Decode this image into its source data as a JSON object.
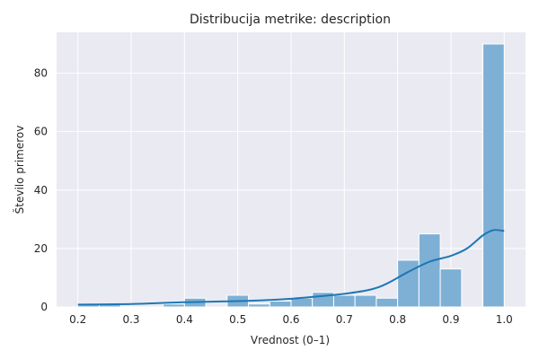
{
  "chart_data": {
    "type": "bar",
    "title": "Distribucija metrike: description",
    "xlabel": "Vrednost (0–1)",
    "ylabel": "Število primerov",
    "xlim": [
      0.16,
      1.04
    ],
    "ylim": [
      0,
      94
    ],
    "xticks": [
      "0.2",
      "0.3",
      "0.4",
      "0.5",
      "0.6",
      "0.7",
      "0.8",
      "0.9",
      "1.0"
    ],
    "yticks": [
      "0",
      "20",
      "40",
      "60",
      "80"
    ],
    "grid": true,
    "bars": [
      {
        "x0": 0.2,
        "x1": 0.24,
        "value": 1
      },
      {
        "x0": 0.24,
        "x1": 0.28,
        "value": 1
      },
      {
        "x0": 0.28,
        "x1": 0.32,
        "value": 0
      },
      {
        "x0": 0.32,
        "x1": 0.36,
        "value": 0
      },
      {
        "x0": 0.36,
        "x1": 0.4,
        "value": 1
      },
      {
        "x0": 0.4,
        "x1": 0.44,
        "value": 3
      },
      {
        "x0": 0.44,
        "x1": 0.48,
        "value": 0
      },
      {
        "x0": 0.48,
        "x1": 0.52,
        "value": 4
      },
      {
        "x0": 0.52,
        "x1": 0.56,
        "value": 1
      },
      {
        "x0": 0.56,
        "x1": 0.6,
        "value": 2
      },
      {
        "x0": 0.6,
        "x1": 0.64,
        "value": 3
      },
      {
        "x0": 0.64,
        "x1": 0.68,
        "value": 5
      },
      {
        "x0": 0.68,
        "x1": 0.72,
        "value": 4
      },
      {
        "x0": 0.72,
        "x1": 0.76,
        "value": 4
      },
      {
        "x0": 0.76,
        "x1": 0.8,
        "value": 3
      },
      {
        "x0": 0.8,
        "x1": 0.84,
        "value": 16
      },
      {
        "x0": 0.84,
        "x1": 0.88,
        "value": 25
      },
      {
        "x0": 0.88,
        "x1": 0.92,
        "value": 13
      },
      {
        "x0": 0.92,
        "x1": 0.96,
        "value": 0
      },
      {
        "x0": 0.96,
        "x1": 1.0,
        "value": 90
      }
    ],
    "kde": {
      "x": [
        0.2,
        0.25,
        0.3,
        0.35,
        0.4,
        0.45,
        0.5,
        0.55,
        0.6,
        0.65,
        0.7,
        0.75,
        0.78,
        0.82,
        0.86,
        0.9,
        0.93,
        0.96,
        0.98,
        1.0
      ],
      "y": [
        0.8,
        0.9,
        1.0,
        1.3,
        1.6,
        1.8,
        2.0,
        2.3,
        2.8,
        3.6,
        4.5,
        6.0,
        8.0,
        12.0,
        15.5,
        17.5,
        20.0,
        24.5,
        26.3,
        26.0
      ]
    },
    "colors": {
      "bar_fill": "#7eb0d5",
      "bar_edge": "#ffffff",
      "kde_line": "#1f77b4",
      "plot_bg": "#eaeaf2",
      "grid": "#ffffff"
    }
  }
}
